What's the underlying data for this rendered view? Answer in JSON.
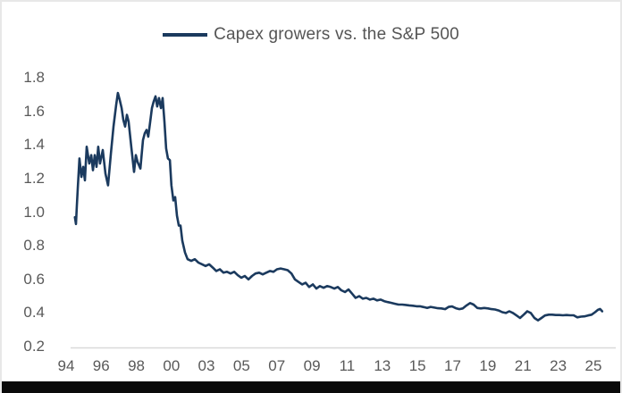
{
  "legend": {
    "label": "Capex growers vs. the S&P 500"
  },
  "colors": {
    "line": "#1b3a5e",
    "axis_line": "#d9d9d9",
    "tick_text": "#595959",
    "legend_text": "#555555",
    "background": "#ffffff",
    "frame_border": "#e8e8e8",
    "bottom_bar": "#0a0a0a"
  },
  "chart_data": {
    "type": "line",
    "title": "Capex growers vs. the S&P 500",
    "xlabel": "",
    "ylabel": "",
    "grid": false,
    "legend_position": "top-center",
    "ylim": [
      0.2,
      1.8
    ],
    "y_ticks": [
      {
        "value": 1.8,
        "label": "1.8"
      },
      {
        "value": 1.6,
        "label": "1.6"
      },
      {
        "value": 1.4,
        "label": "1.4"
      },
      {
        "value": 1.2,
        "label": "1.2"
      },
      {
        "value": 1.0,
        "label": "1.0"
      },
      {
        "value": 0.8,
        "label": "0.8"
      },
      {
        "value": 0.6,
        "label": "0.6"
      },
      {
        "value": 0.4,
        "label": "0.4"
      },
      {
        "value": 0.2,
        "label": "0.2"
      }
    ],
    "x_ticks": [
      {
        "year": 1994,
        "label": "94"
      },
      {
        "year": 1996,
        "label": "96"
      },
      {
        "year": 1998,
        "label": "98"
      },
      {
        "year": 2000,
        "label": "00"
      },
      {
        "year": 2003,
        "label": "03"
      },
      {
        "year": 2005,
        "label": "05"
      },
      {
        "year": 2007,
        "label": "07"
      },
      {
        "year": 2009,
        "label": "09"
      },
      {
        "year": 2011,
        "label": "11"
      },
      {
        "year": 2013,
        "label": "13"
      },
      {
        "year": 2015,
        "label": "15"
      },
      {
        "year": 2017,
        "label": "17"
      },
      {
        "year": 2019,
        "label": "19"
      },
      {
        "year": 2021,
        "label": "21"
      },
      {
        "year": 2023,
        "label": "23"
      },
      {
        "year": 2025,
        "label": "25"
      }
    ],
    "series": [
      {
        "name": "Capex growers vs. the S&P 500",
        "points": [
          [
            1994.5,
            0.97
          ],
          [
            1994.56,
            0.93
          ],
          [
            1994.61,
            1.04
          ],
          [
            1994.66,
            1.14
          ],
          [
            1994.76,
            1.32
          ],
          [
            1994.87,
            1.21
          ],
          [
            1994.97,
            1.27
          ],
          [
            1995.07,
            1.19
          ],
          [
            1995.17,
            1.39
          ],
          [
            1995.32,
            1.29
          ],
          [
            1995.43,
            1.34
          ],
          [
            1995.53,
            1.25
          ],
          [
            1995.63,
            1.34
          ],
          [
            1995.73,
            1.27
          ],
          [
            1995.83,
            1.39
          ],
          [
            1995.93,
            1.29
          ],
          [
            1996.09,
            1.37
          ],
          [
            1996.24,
            1.23
          ],
          [
            1996.39,
            1.16
          ],
          [
            1996.55,
            1.35
          ],
          [
            1996.7,
            1.51
          ],
          [
            1996.85,
            1.64
          ],
          [
            1996.95,
            1.71
          ],
          [
            1997.05,
            1.67
          ],
          [
            1997.16,
            1.62
          ],
          [
            1997.26,
            1.55
          ],
          [
            1997.36,
            1.51
          ],
          [
            1997.46,
            1.58
          ],
          [
            1997.56,
            1.54
          ],
          [
            1997.72,
            1.38
          ],
          [
            1997.87,
            1.24
          ],
          [
            1997.97,
            1.34
          ],
          [
            1998.07,
            1.3
          ],
          [
            1998.23,
            1.26
          ],
          [
            1998.38,
            1.43
          ],
          [
            1998.48,
            1.47
          ],
          [
            1998.58,
            1.49
          ],
          [
            1998.68,
            1.45
          ],
          [
            1998.79,
            1.54
          ],
          [
            1998.89,
            1.62
          ],
          [
            1998.99,
            1.66
          ],
          [
            1999.09,
            1.69
          ],
          [
            1999.19,
            1.63
          ],
          [
            1999.29,
            1.68
          ],
          [
            1999.4,
            1.62
          ],
          [
            1999.5,
            1.68
          ],
          [
            1999.6,
            1.54
          ],
          [
            1999.7,
            1.38
          ],
          [
            1999.8,
            1.32
          ],
          [
            1999.91,
            1.31
          ],
          [
            2000.0,
            1.16
          ],
          [
            2000.15,
            1.07
          ],
          [
            2000.31,
            1.09
          ],
          [
            2000.46,
            0.98
          ],
          [
            2000.62,
            0.92
          ],
          [
            2000.77,
            0.92
          ],
          [
            2000.92,
            0.83
          ],
          [
            2001.15,
            0.76
          ],
          [
            2001.38,
            0.72
          ],
          [
            2001.69,
            0.71
          ],
          [
            2002.0,
            0.72
          ],
          [
            2002.31,
            0.7
          ],
          [
            2002.62,
            0.69
          ],
          [
            2002.92,
            0.68
          ],
          [
            2003.15,
            0.69
          ],
          [
            2003.36,
            0.67
          ],
          [
            2003.56,
            0.65
          ],
          [
            2003.76,
            0.66
          ],
          [
            2003.97,
            0.64
          ],
          [
            2004.17,
            0.645
          ],
          [
            2004.37,
            0.635
          ],
          [
            2004.58,
            0.645
          ],
          [
            2004.78,
            0.625
          ],
          [
            2004.98,
            0.61
          ],
          [
            2005.18,
            0.62
          ],
          [
            2005.39,
            0.6
          ],
          [
            2005.59,
            0.62
          ],
          [
            2005.79,
            0.635
          ],
          [
            2006.0,
            0.64
          ],
          [
            2006.2,
            0.63
          ],
          [
            2006.4,
            0.64
          ],
          [
            2006.61,
            0.65
          ],
          [
            2006.81,
            0.645
          ],
          [
            2007.01,
            0.66
          ],
          [
            2007.22,
            0.665
          ],
          [
            2007.42,
            0.66
          ],
          [
            2007.62,
            0.655
          ],
          [
            2007.83,
            0.635
          ],
          [
            2008.03,
            0.6
          ],
          [
            2008.23,
            0.585
          ],
          [
            2008.44,
            0.57
          ],
          [
            2008.64,
            0.58
          ],
          [
            2008.84,
            0.555
          ],
          [
            2009.05,
            0.57
          ],
          [
            2009.25,
            0.545
          ],
          [
            2009.45,
            0.56
          ],
          [
            2009.66,
            0.55
          ],
          [
            2009.86,
            0.56
          ],
          [
            2010.06,
            0.555
          ],
          [
            2010.27,
            0.545
          ],
          [
            2010.47,
            0.555
          ],
          [
            2010.67,
            0.535
          ],
          [
            2010.88,
            0.525
          ],
          [
            2011.08,
            0.54
          ],
          [
            2011.28,
            0.515
          ],
          [
            2011.48,
            0.49
          ],
          [
            2011.69,
            0.5
          ],
          [
            2011.89,
            0.485
          ],
          [
            2012.09,
            0.49
          ],
          [
            2012.3,
            0.48
          ],
          [
            2012.5,
            0.485
          ],
          [
            2012.7,
            0.475
          ],
          [
            2012.91,
            0.48
          ],
          [
            2013.11,
            0.47
          ],
          [
            2013.31,
            0.465
          ],
          [
            2013.52,
            0.46
          ],
          [
            2013.72,
            0.455
          ],
          [
            2013.92,
            0.45
          ],
          [
            2014.13,
            0.45
          ],
          [
            2014.33,
            0.448
          ],
          [
            2014.53,
            0.445
          ],
          [
            2014.74,
            0.443
          ],
          [
            2014.94,
            0.44
          ],
          [
            2015.14,
            0.44
          ],
          [
            2015.35,
            0.435
          ],
          [
            2015.55,
            0.43
          ],
          [
            2015.75,
            0.436
          ],
          [
            2015.96,
            0.432
          ],
          [
            2016.16,
            0.428
          ],
          [
            2016.36,
            0.427
          ],
          [
            2016.57,
            0.423
          ],
          [
            2016.77,
            0.436
          ],
          [
            2016.97,
            0.439
          ],
          [
            2017.18,
            0.428
          ],
          [
            2017.38,
            0.423
          ],
          [
            2017.58,
            0.427
          ],
          [
            2017.79,
            0.445
          ],
          [
            2017.99,
            0.459
          ],
          [
            2018.19,
            0.45
          ],
          [
            2018.4,
            0.43
          ],
          [
            2018.6,
            0.427
          ],
          [
            2018.8,
            0.43
          ],
          [
            2019.01,
            0.427
          ],
          [
            2019.21,
            0.423
          ],
          [
            2019.41,
            0.421
          ],
          [
            2019.61,
            0.415
          ],
          [
            2019.82,
            0.405
          ],
          [
            2020.02,
            0.4
          ],
          [
            2020.22,
            0.41
          ],
          [
            2020.43,
            0.4
          ],
          [
            2020.63,
            0.385
          ],
          [
            2020.83,
            0.37
          ],
          [
            2021.04,
            0.39
          ],
          [
            2021.24,
            0.41
          ],
          [
            2021.44,
            0.4
          ],
          [
            2021.65,
            0.37
          ],
          [
            2021.85,
            0.356
          ],
          [
            2022.05,
            0.37
          ],
          [
            2022.25,
            0.385
          ],
          [
            2022.46,
            0.39
          ],
          [
            2022.66,
            0.39
          ],
          [
            2022.86,
            0.388
          ],
          [
            2023.07,
            0.388
          ],
          [
            2023.27,
            0.386
          ],
          [
            2023.47,
            0.388
          ],
          [
            2023.68,
            0.386
          ],
          [
            2023.88,
            0.386
          ],
          [
            2024.08,
            0.374
          ],
          [
            2024.29,
            0.378
          ],
          [
            2024.49,
            0.38
          ],
          [
            2024.69,
            0.385
          ],
          [
            2024.9,
            0.39
          ],
          [
            2025.1,
            0.405
          ],
          [
            2025.25,
            0.418
          ],
          [
            2025.38,
            0.424
          ],
          [
            2025.5,
            0.41
          ]
        ]
      }
    ]
  }
}
